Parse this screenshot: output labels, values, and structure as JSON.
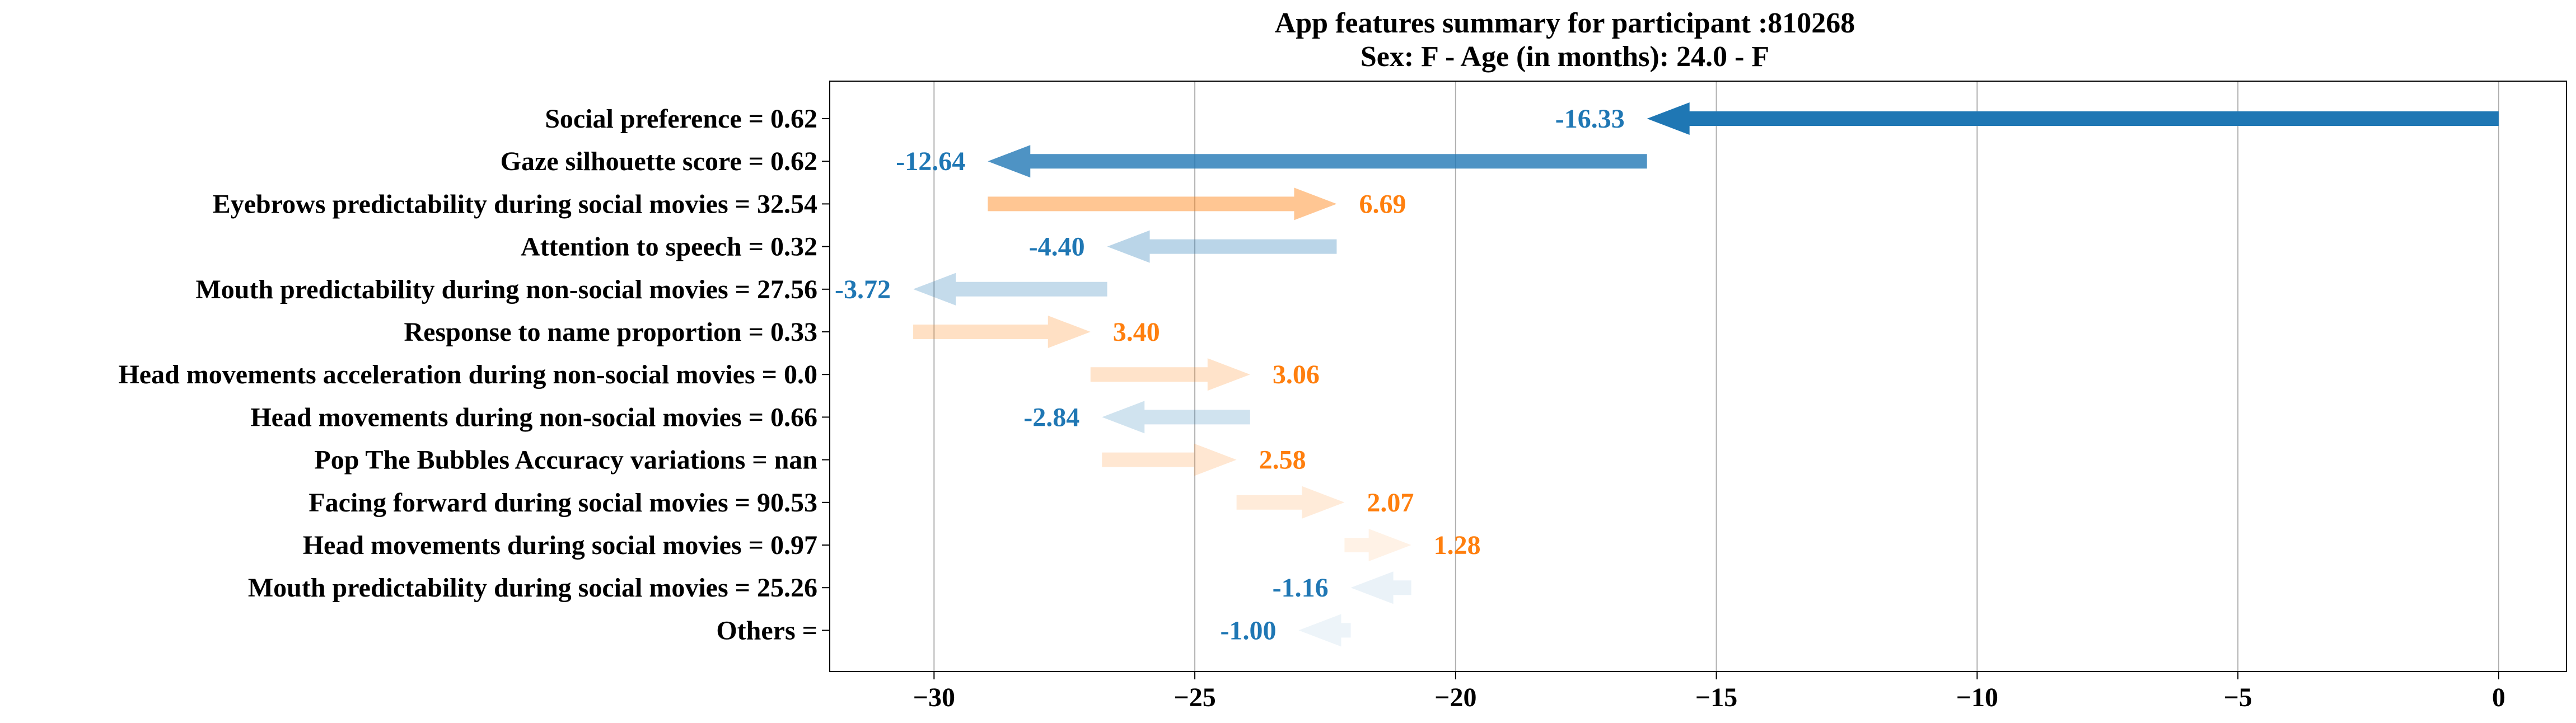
{
  "chart_data": {
    "type": "waterfall",
    "orientation": "horizontal",
    "title": "App features summary for participant :810268",
    "subtitle": "Sex: F - Age (in months): 24.0 - F",
    "xlabel": "",
    "ylabel": "",
    "xlim": [
      -32,
      1.3
    ],
    "xticks": [
      -30,
      -25,
      -20,
      -15,
      -10,
      -5,
      0
    ],
    "xtick_labels": [
      "−30",
      "−25",
      "−20",
      "−15",
      "−10",
      "−5",
      "0"
    ],
    "grid": "vertical",
    "colors": {
      "positive": "#ff7f0e",
      "negative": "#1f77b4",
      "axis": "#000000",
      "grid": "#b0b0b0"
    },
    "bars": [
      {
        "label": "Social preference = 0.62",
        "start": 0.0,
        "value": -16.33,
        "value_label": "-16.33"
      },
      {
        "label": "Gaze silhouette score = 0.62",
        "start": -16.33,
        "value": -12.64,
        "value_label": "-12.64"
      },
      {
        "label": "Eyebrows predictability during social movies = 32.54",
        "start": -28.97,
        "value": 6.69,
        "value_label": "6.69"
      },
      {
        "label": "Attention to speech = 0.32",
        "start": -22.28,
        "value": -4.4,
        "value_label": "-4.40"
      },
      {
        "label": "Mouth predictability during non-social movies = 27.56",
        "start": -26.68,
        "value": -3.72,
        "value_label": "-3.72"
      },
      {
        "label": "Response to name proportion = 0.33",
        "start": -30.4,
        "value": 3.4,
        "value_label": "3.40"
      },
      {
        "label": "Head movements acceleration during non-social movies = 0.0",
        "start": -27.0,
        "value": 3.06,
        "value_label": "3.06"
      },
      {
        "label": "Head movements during non-social movies = 0.66",
        "start": -23.94,
        "value": -2.84,
        "value_label": "-2.84"
      },
      {
        "label": "Pop The Bubbles Accuracy variations = nan",
        "start": -26.78,
        "value": 2.58,
        "value_label": "2.58"
      },
      {
        "label": "Facing forward during social movies = 90.53",
        "start": -24.2,
        "value": 2.07,
        "value_label": "2.07"
      },
      {
        "label": "Head movements during social movies = 0.97",
        "start": -22.13,
        "value": 1.28,
        "value_label": "1.28"
      },
      {
        "label": "Mouth predictability during social movies = 25.26",
        "start": -20.85,
        "value": -1.16,
        "value_label": "-1.16"
      },
      {
        "label": "Others = ",
        "start": -22.01,
        "value": -1.0,
        "value_label": "-1.00"
      }
    ]
  }
}
